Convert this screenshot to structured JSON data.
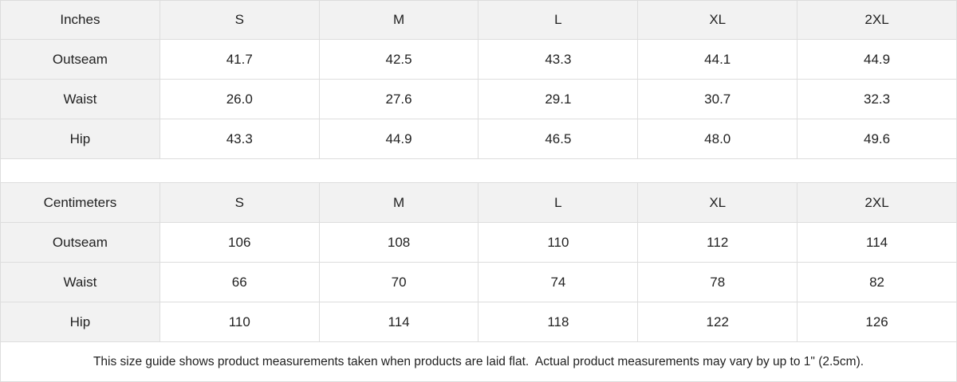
{
  "tables": [
    {
      "unit": "Inches",
      "sizes": [
        "S",
        "M",
        "L",
        "XL",
        "2XL"
      ],
      "rows": [
        {
          "label": "Outseam",
          "values": [
            "41.7",
            "42.5",
            "43.3",
            "44.1",
            "44.9"
          ]
        },
        {
          "label": "Waist",
          "values": [
            "26.0",
            "27.6",
            "29.1",
            "30.7",
            "32.3"
          ]
        },
        {
          "label": "Hip",
          "values": [
            "43.3",
            "44.9",
            "46.5",
            "48.0",
            "49.6"
          ]
        }
      ]
    },
    {
      "unit": "Centimeters",
      "sizes": [
        "S",
        "M",
        "L",
        "XL",
        "2XL"
      ],
      "rows": [
        {
          "label": "Outseam",
          "values": [
            "106",
            "108",
            "110",
            "112",
            "114"
          ]
        },
        {
          "label": "Waist",
          "values": [
            "66",
            "70",
            "74",
            "78",
            "82"
          ]
        },
        {
          "label": "Hip",
          "values": [
            "110",
            "114",
            "118",
            "122",
            "126"
          ]
        }
      ]
    }
  ],
  "note": "This size guide shows product measurements taken when products are laid flat.  Actual product measurements may vary by up to 1\" (2.5cm).",
  "colors": {
    "header_bg": "#f2f2f2",
    "border": "#dddddd",
    "text": "#222222"
  }
}
